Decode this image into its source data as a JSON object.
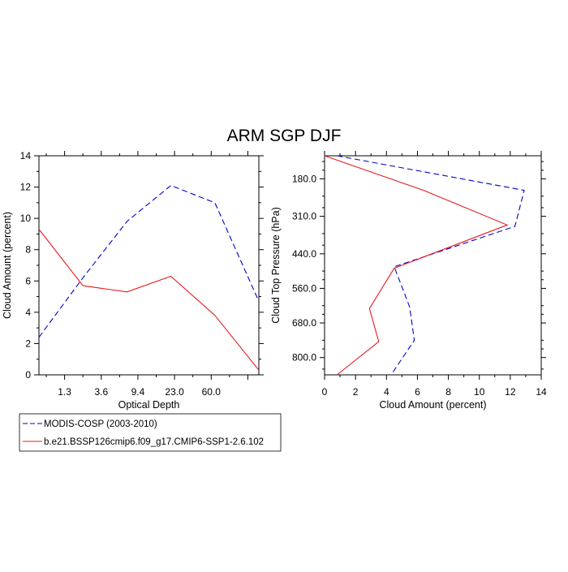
{
  "title": "ARM SGP DJF",
  "colors": {
    "obs": "#0000cc",
    "model": "#e8191d",
    "axis": "#000000"
  },
  "legend": {
    "entries": [
      {
        "label": "MODIS-COSP (2003-2010)",
        "style": "dashed",
        "color_key": "obs"
      },
      {
        "label": "b.e21.BSSP126cmip6.f09_g17.CMIP6-SSP1-2.6.102",
        "style": "solid",
        "color_key": "model"
      }
    ]
  },
  "chart_data": [
    {
      "type": "line",
      "xlabel": "Optical Depth",
      "ylabel": "Cloud Amount (percent)",
      "xlim": [
        0,
        6
      ],
      "ylim": [
        0,
        14
      ],
      "x_ticks": [
        0.7,
        1.7,
        2.7,
        3.7,
        4.7,
        5.7
      ],
      "x_tick_labels": [
        "1.3",
        "3.6",
        "9.4",
        "23.0",
        "60.0",
        ""
      ],
      "y_ticks": [
        0,
        2,
        4,
        6,
        8,
        10,
        12,
        14
      ],
      "y_tick_labels": [
        "0",
        "2",
        "4",
        "6",
        "8",
        "10",
        "12",
        "14"
      ],
      "x_minor_ticks": [
        0.2,
        1.2,
        2.2,
        3.2,
        4.2,
        5.2
      ],
      "y_minor_ticks": [
        1,
        3,
        5,
        7,
        9,
        11,
        13
      ],
      "series": [
        {
          "name": "MODIS-COSP (2003-2010)",
          "x": [
            0,
            1.2,
            2.4,
            3.6,
            4.8,
            6.0
          ],
          "values": [
            2.4,
            6.2,
            9.8,
            12.1,
            11.0,
            4.7
          ]
        },
        {
          "name": "b.e21.BSSP126cmip6.f09_g17.CMIP6-SSP1-2.6.102",
          "x": [
            0,
            1.2,
            2.4,
            3.6,
            4.8,
            6.0
          ],
          "values": [
            9.3,
            5.7,
            5.3,
            6.3,
            3.8,
            0.3
          ]
        }
      ]
    },
    {
      "type": "line",
      "xlabel": "Cloud Amount (percent)",
      "ylabel": "Cloud Top Pressure (hPa)",
      "xlim": [
        0,
        14
      ],
      "ylim": [
        860,
        100
      ],
      "x_ticks": [
        0,
        2,
        4,
        6,
        8,
        10,
        12,
        14
      ],
      "x_tick_labels": [
        "0",
        "2",
        "4",
        "6",
        "8",
        "10",
        "12",
        "14"
      ],
      "y_ticks": [
        180,
        310,
        440,
        560,
        680,
        800
      ],
      "y_tick_labels": [
        "180.0",
        "310.0",
        "440.0",
        "560.0",
        "680.0",
        "800.0"
      ],
      "x_minor_ticks": [
        1,
        3,
        5,
        7,
        9,
        11,
        13
      ],
      "y_minor_ticks": [
        120,
        150,
        240,
        280,
        370,
        410,
        500,
        530,
        620,
        650,
        740,
        770,
        840
      ],
      "series": [
        {
          "name": "MODIS-COSP (2003-2010)",
          "x": [
            0.8,
            12.9,
            12.3,
            4.5,
            5.5,
            5.8,
            4.3
          ],
          "values": [
            100,
            220,
            345,
            485,
            625,
            740,
            860
          ]
        },
        {
          "name": "b.e21.BSSP126cmip6.f09_g17.CMIP6-SSP1-2.6.102",
          "x": [
            0,
            6.4,
            11.8,
            4.5,
            2.9,
            3.5,
            0.8
          ],
          "values": [
            100,
            220,
            340,
            490,
            630,
            745,
            860
          ]
        }
      ]
    }
  ]
}
